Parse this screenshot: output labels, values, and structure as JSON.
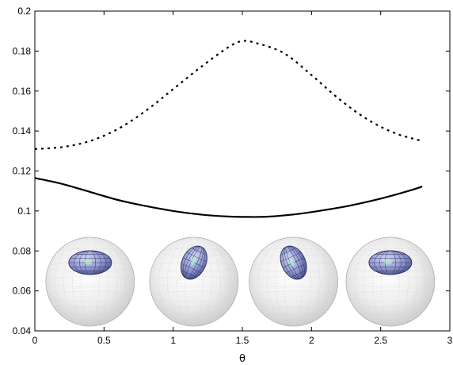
{
  "chart_data": {
    "type": "line",
    "xlabel": "θ",
    "ylabel": "",
    "xlim": [
      0,
      3
    ],
    "ylim": [
      0.04,
      0.2
    ],
    "xticks": [
      0,
      0.5,
      1,
      1.5,
      2,
      2.5,
      3
    ],
    "xtick_labels": [
      "0",
      "0.5",
      "1",
      "1.5",
      "2",
      "2.5",
      "3"
    ],
    "yticks": [
      0.04,
      0.06,
      0.08,
      0.1,
      0.12,
      0.14,
      0.16,
      0.18,
      0.2
    ],
    "ytick_labels": [
      "0.04",
      "0.06",
      "0.08",
      "0.1",
      "0.12",
      "0.14",
      "0.16",
      "0.18",
      "0.2"
    ],
    "grid": false,
    "series": [
      {
        "style": "dotted",
        "color": "#000000",
        "x": [
          0,
          0.2,
          0.4,
          0.6,
          0.8,
          1.0,
          1.2,
          1.4,
          1.5,
          1.6,
          1.8,
          2.0,
          2.2,
          2.4,
          2.6,
          2.8
        ],
        "y": [
          0.131,
          0.132,
          0.135,
          0.141,
          0.15,
          0.161,
          0.172,
          0.182,
          0.185,
          0.184,
          0.179,
          0.168,
          0.156,
          0.146,
          0.139,
          0.135
        ]
      },
      {
        "style": "solid",
        "color": "#000000",
        "x": [
          0,
          0.2,
          0.4,
          0.6,
          0.8,
          1.0,
          1.2,
          1.4,
          1.55,
          1.7,
          1.9,
          2.1,
          2.3,
          2.5,
          2.7,
          2.8
        ],
        "y": [
          0.1165,
          0.1135,
          0.1095,
          0.1055,
          0.1025,
          0.1,
          0.0982,
          0.0972,
          0.097,
          0.0972,
          0.0985,
          0.1005,
          0.103,
          0.1062,
          0.11,
          0.1122
        ]
      }
    ],
    "insets": [
      {
        "name": "sphere-inset-1",
        "x": 0.4,
        "tilt": 0
      },
      {
        "name": "sphere-inset-2",
        "x": 1.15,
        "tilt": 25
      },
      {
        "name": "sphere-inset-3",
        "x": 1.87,
        "tilt": -25
      },
      {
        "name": "sphere-inset-4",
        "x": 2.57,
        "tilt": 0
      }
    ]
  }
}
